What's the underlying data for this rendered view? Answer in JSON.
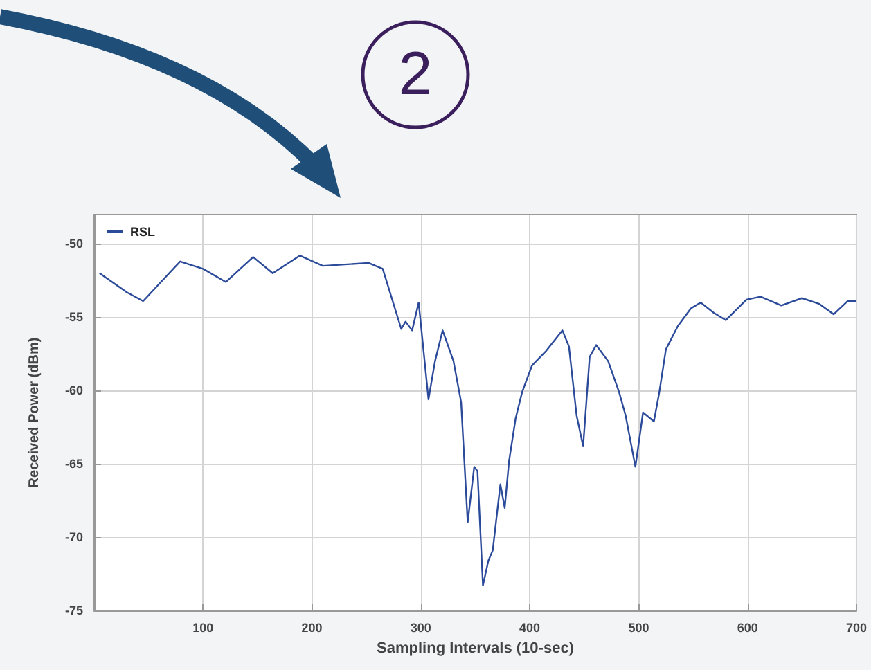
{
  "chart_data": {
    "type": "line",
    "xlabel": "Sampling Intervals (10-sec)",
    "ylabel": "Received Power (dBm)",
    "annotations": [
      "2"
    ],
    "x": [
      5,
      30,
      45,
      79,
      100,
      121,
      146,
      164,
      189,
      210,
      252,
      265,
      282,
      286,
      292,
      298,
      307,
      313,
      320,
      330,
      337,
      343,
      349,
      352,
      357,
      362,
      366,
      373,
      377,
      381,
      387,
      393,
      402,
      415,
      430,
      436,
      443,
      449,
      455,
      461,
      472,
      482,
      488,
      497,
      504,
      514,
      519,
      525,
      536,
      548,
      557,
      569,
      580,
      599,
      612,
      631,
      650,
      666,
      679,
      692,
      700
    ],
    "series": [
      {
        "name": "RSL",
        "color": "#2b4a9a",
        "values": [
          -52.0,
          -53.3,
          -53.9,
          -51.2,
          -51.7,
          -52.6,
          -50.9,
          -52.0,
          -50.8,
          -51.5,
          -51.3,
          -51.7,
          -55.8,
          -55.3,
          -55.9,
          -54.0,
          -60.6,
          -58.0,
          -55.9,
          -58.0,
          -60.8,
          -69.0,
          -65.2,
          -65.5,
          -73.3,
          -71.6,
          -70.9,
          -66.4,
          -68.0,
          -64.8,
          -61.9,
          -60.1,
          -58.3,
          -57.3,
          -55.9,
          -57.0,
          -61.7,
          -63.8,
          -57.7,
          -56.9,
          -58.0,
          -60.1,
          -61.7,
          -65.2,
          -61.5,
          -62.1,
          -60.1,
          -57.2,
          -55.6,
          -54.4,
          -54.0,
          -54.7,
          -55.2,
          -53.8,
          -53.6,
          -54.2,
          -53.7,
          -54.1,
          -54.8,
          -53.9,
          -53.9
        ]
      }
    ],
    "xlim": [
      0,
      700
    ],
    "xticks": [
      100,
      200,
      300,
      400,
      500,
      600,
      700
    ],
    "ylim": [
      -75,
      -48
    ],
    "yticks": [
      -75,
      -70,
      -65,
      -60,
      -55,
      -50
    ],
    "grid": true,
    "legend": "top left",
    "marker": "none",
    "line_style": "solid"
  }
}
